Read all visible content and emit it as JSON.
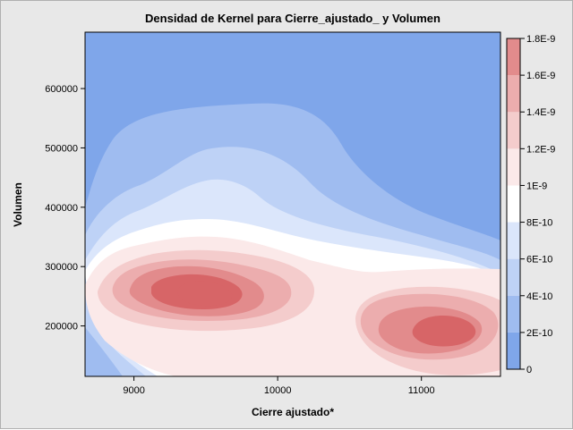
{
  "chart_data": {
    "type": "heatmap",
    "title": "Densidad de Kernel para Cierre_ajustado_ y Volumen",
    "xlabel": "Cierre ajustado*",
    "ylabel": "Volumen",
    "xlim": [
      8660,
      11550
    ],
    "ylim": [
      115000,
      695000
    ],
    "x_ticks": [
      9000,
      10000,
      11000
    ],
    "x_tick_labels": [
      "9000",
      "10000",
      "11000"
    ],
    "y_ticks": [
      200000,
      300000,
      400000,
      500000,
      600000
    ],
    "y_tick_labels": [
      "200000",
      "300000",
      "400000",
      "500000",
      "600000"
    ],
    "peaks": [
      {
        "x": 9550,
        "y": 255000,
        "density": 1.7e-09
      },
      {
        "x": 11150,
        "y": 190000,
        "density": 1.35e-09
      }
    ],
    "colorbar": {
      "min": 0,
      "max": 1.8e-09,
      "tick_values": [
        0,
        2e-10,
        4e-10,
        6e-10,
        8e-10,
        1e-09,
        1.2e-09,
        1.4e-09,
        1.6e-09,
        1.8e-09
      ],
      "tick_labels": [
        "0",
        "2E-10",
        "4E-10",
        "6E-10",
        "8E-10",
        "1E-9",
        "1.2E-9",
        "1.4E-9",
        "1.6E-9",
        "1.8E-9"
      ],
      "band_colors": [
        "#7fa6ea",
        "#9fbcf0",
        "#bed2f6",
        "#dbe6fb",
        "#ffffff",
        "#fbe9e9",
        "#f4cccc",
        "#ecadae",
        "#e28b8c",
        "#d76567"
      ]
    }
  }
}
